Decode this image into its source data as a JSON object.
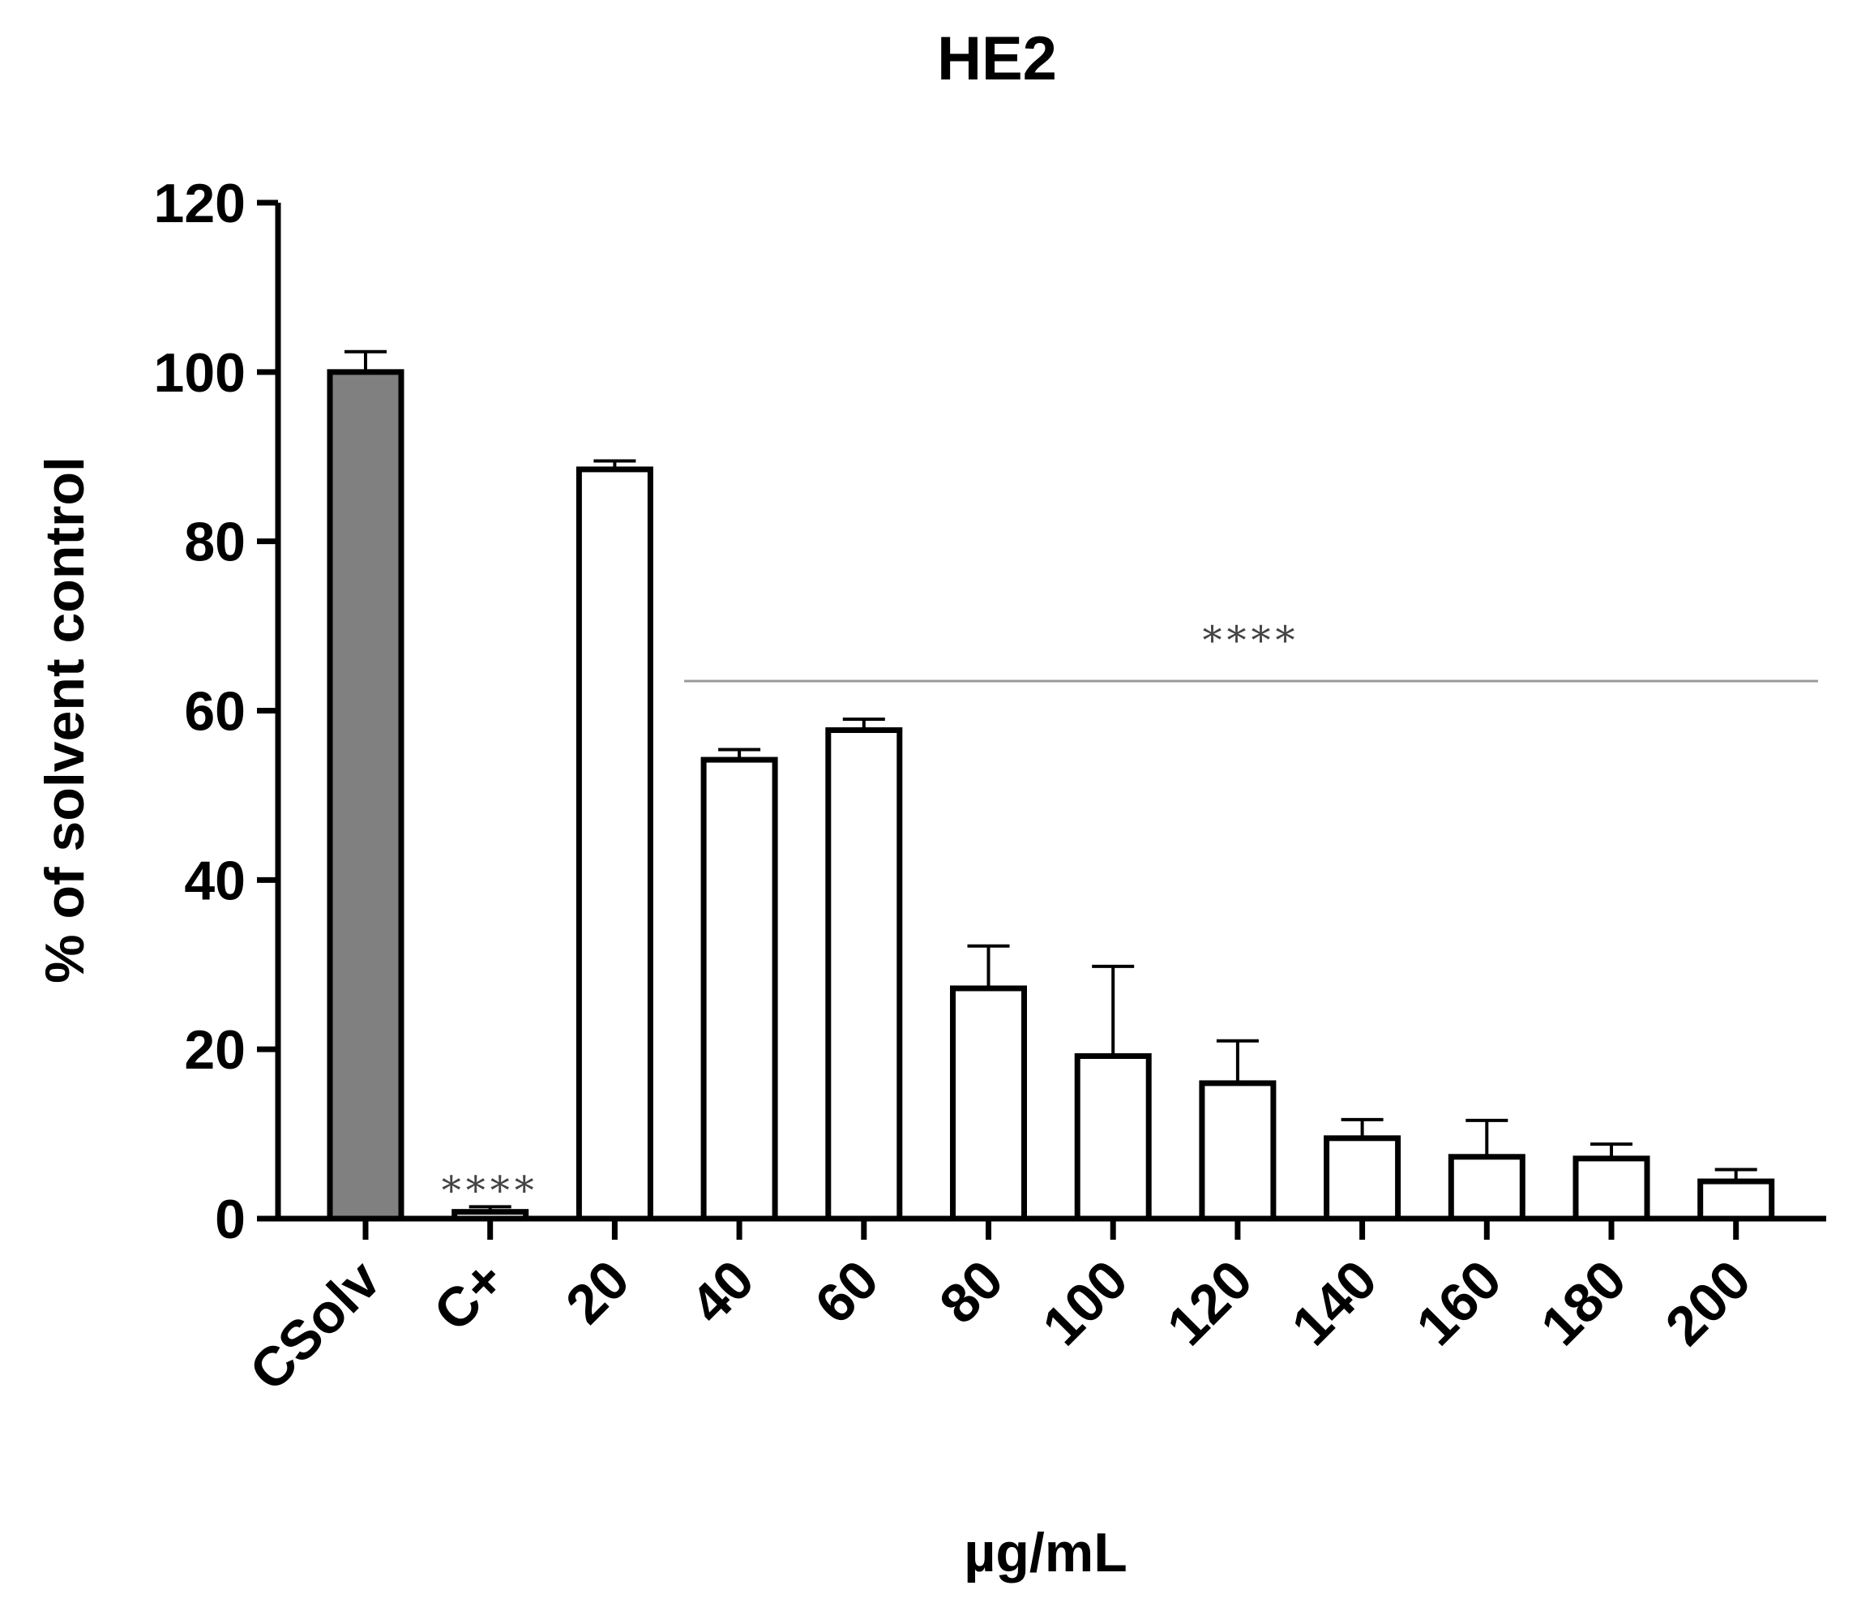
{
  "chart_data": {
    "type": "bar",
    "title": "HE2",
    "xlabel": "µg/mL",
    "ylabel": "% of solvent control",
    "ylim": [
      0,
      120
    ],
    "yticks": [
      0,
      20,
      40,
      60,
      80,
      100,
      120
    ],
    "categories": [
      "CSolv",
      "C+",
      "20",
      "40",
      "60",
      "80",
      "100",
      "120",
      "140",
      "160",
      "180",
      "200"
    ],
    "values": [
      100,
      0.8,
      88.5,
      54.2,
      57.7,
      27.2,
      19.2,
      16.0,
      9.5,
      7.3,
      7.1,
      4.4
    ],
    "errors": [
      2.4,
      0.6,
      1.0,
      1.2,
      1.3,
      5.0,
      10.6,
      5.0,
      2.2,
      4.3,
      1.7,
      1.4
    ],
    "bar_fills": [
      "#808080",
      "#ffffff",
      "#ffffff",
      "#ffffff",
      "#ffffff",
      "#ffffff",
      "#ffffff",
      "#ffffff",
      "#ffffff",
      "#ffffff",
      "#ffffff",
      "#ffffff"
    ],
    "annotations": [
      {
        "text": "****",
        "category": "C+"
      },
      {
        "text": "****",
        "span": [
          "40",
          "200"
        ],
        "y": 63.5
      }
    ],
    "grid": false,
    "legend": "none",
    "colors": {
      "axis": "#000000",
      "bracket": "#999999",
      "significance": "#444444"
    }
  }
}
